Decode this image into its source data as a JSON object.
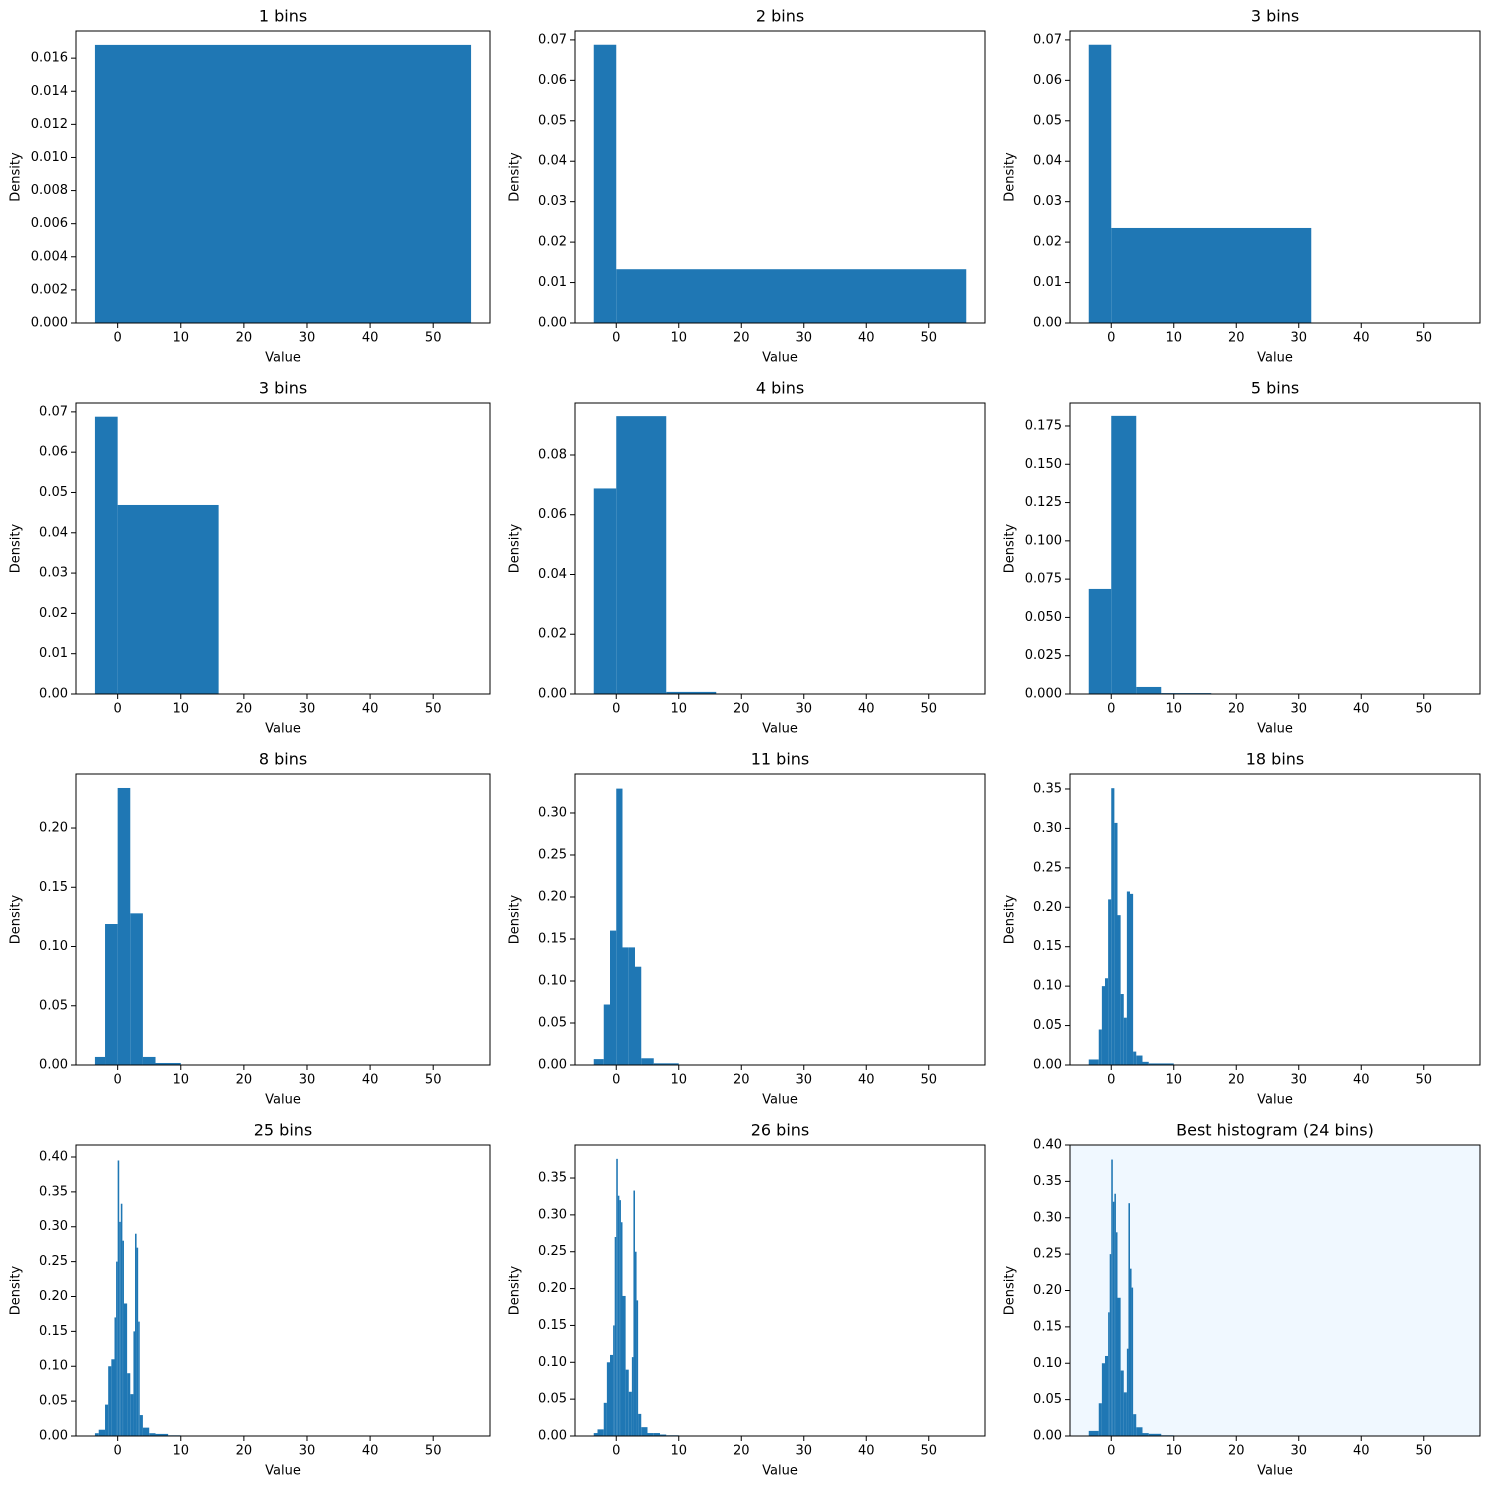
{
  "chart_data": [
    {
      "type": "histogram",
      "title": "1 bins",
      "x_label": "Value",
      "y_label": "Density",
      "color": "#1f77b4",
      "bins": [
        -3.6,
        56
      ],
      "values": [
        0.0168
      ],
      "xlim": [
        -6.6,
        59
      ],
      "xticks": [
        0,
        10,
        20,
        30,
        40,
        50
      ],
      "ylim": [
        0,
        0.01764
      ],
      "yticks": [
        {
          "value": 0,
          "label": "0.000"
        },
        0.002,
        0.004,
        0.006,
        0.008,
        {
          "value": 0.01,
          "label": "0.010"
        },
        0.012,
        0.014,
        0.016
      ]
    },
    {
      "type": "histogram",
      "title": "2 bins",
      "x_label": "Value",
      "y_label": "Density",
      "color": "#1f77b4",
      "bins": [
        -3.6,
        0,
        56
      ],
      "values": [
        0.0688,
        0.0133
      ],
      "xlim": [
        -6.6,
        59
      ],
      "xticks": [
        0,
        10,
        20,
        30,
        40,
        50
      ],
      "ylim": [
        0,
        0.0722
      ],
      "yticks": [
        {
          "value": 0,
          "label": "0.00"
        },
        0.01,
        0.02,
        0.03,
        0.04,
        0.05,
        0.06,
        0.07
      ]
    },
    {
      "type": "histogram",
      "title": "3 bins",
      "x_label": "Value",
      "y_label": "Density",
      "color": "#1f77b4",
      "bins": [
        -3.6,
        0,
        32,
        56
      ],
      "values": [
        0.0688,
        0.0235,
        2e-05
      ],
      "xlim": [
        -6.6,
        59
      ],
      "xticks": [
        0,
        10,
        20,
        30,
        40,
        50
      ],
      "ylim": [
        0,
        0.0722
      ],
      "yticks": [
        {
          "value": 0,
          "label": "0.00"
        },
        0.01,
        0.02,
        0.03,
        0.04,
        0.05,
        0.06,
        0.07
      ]
    },
    {
      "type": "histogram",
      "title": "3 bins",
      "x_label": "Value",
      "y_label": "Density",
      "color": "#1f77b4",
      "bins": [
        -3.6,
        0,
        16,
        56
      ],
      "values": [
        0.0688,
        0.0469,
        5e-05
      ],
      "xlim": [
        -6.6,
        59
      ],
      "xticks": [
        0,
        10,
        20,
        30,
        40,
        50
      ],
      "ylim": [
        0,
        0.0722
      ],
      "yticks": [
        {
          "value": 0,
          "label": "0.00"
        },
        0.01,
        0.02,
        0.03,
        0.04,
        0.05,
        0.06,
        0.07
      ]
    },
    {
      "type": "histogram",
      "title": "4 bins",
      "x_label": "Value",
      "y_label": "Density",
      "color": "#1f77b4",
      "bins": [
        -3.6,
        0,
        8,
        16,
        56
      ],
      "values": [
        0.0688,
        0.093,
        0.0007,
        2e-05
      ],
      "xlim": [
        -6.6,
        59
      ],
      "xticks": [
        0,
        10,
        20,
        30,
        40,
        50
      ],
      "ylim": [
        0,
        0.0974
      ],
      "yticks": [
        {
          "value": 0,
          "label": "0.00"
        },
        0.02,
        0.04,
        0.06,
        0.08
      ]
    },
    {
      "type": "histogram",
      "title": "5 bins",
      "x_label": "Value",
      "y_label": "Density",
      "color": "#1f77b4",
      "bins": [
        -3.6,
        0,
        4,
        8,
        16,
        56
      ],
      "values": [
        0.0686,
        0.1816,
        0.0046,
        0.0006,
        2e-05
      ],
      "xlim": [
        -6.6,
        59
      ],
      "xticks": [
        0,
        10,
        20,
        30,
        40,
        50
      ],
      "ylim": [
        0,
        0.19
      ],
      "yticks": [
        {
          "value": 0,
          "label": "0.000"
        },
        0.025,
        {
          "value": 0.05,
          "label": "0.050"
        },
        0.075,
        {
          "value": 0.1,
          "label": "0.100"
        },
        0.125,
        {
          "value": 0.15,
          "label": "0.150"
        },
        0.175
      ]
    },
    {
      "type": "histogram",
      "title": "8 bins",
      "x_label": "Value",
      "y_label": "Density",
      "color": "#1f77b4",
      "bins": [
        -3.6,
        -2,
        0,
        2,
        4,
        6,
        10,
        16,
        56
      ],
      "values": [
        0.0068,
        0.119,
        0.2338,
        0.128,
        0.0068,
        0.0017,
        0.0003,
        1e-05
      ],
      "xlim": [
        -6.6,
        59
      ],
      "xticks": [
        0,
        10,
        20,
        30,
        40,
        50
      ],
      "ylim": [
        0,
        0.2456
      ],
      "yticks": [
        {
          "value": 0,
          "label": "0.00"
        },
        0.05,
        {
          "value": 0.1,
          "label": "0.10"
        },
        0.15,
        {
          "value": 0.2,
          "label": "0.20"
        }
      ]
    },
    {
      "type": "histogram",
      "title": "11 bins",
      "x_label": "Value",
      "y_label": "Density",
      "color": "#1f77b4",
      "bins": [
        -3.6,
        -2,
        -1,
        0,
        1,
        2,
        3,
        4,
        6,
        10,
        16,
        56
      ],
      "values": [
        0.007,
        0.072,
        0.16,
        0.329,
        0.14,
        0.14,
        0.117,
        0.008,
        0.002,
        0.0003,
        1e-05
      ],
      "xlim": [
        -6.6,
        59
      ],
      "xticks": [
        0,
        10,
        20,
        30,
        40,
        50
      ],
      "ylim": [
        0,
        0.3464
      ],
      "yticks": [
        {
          "value": 0,
          "label": "0.00"
        },
        0.05,
        {
          "value": 0.1,
          "label": "0.10"
        },
        0.15,
        {
          "value": 0.2,
          "label": "0.20"
        },
        0.25,
        {
          "value": 0.3,
          "label": "0.30"
        }
      ]
    },
    {
      "type": "histogram",
      "title": "18 bins",
      "x_label": "Value",
      "y_label": "Density",
      "color": "#1f77b4",
      "bins": [
        -3.6,
        -2,
        -1.5,
        -1,
        -0.5,
        0,
        0.5,
        1,
        1.5,
        2,
        2.5,
        3,
        3.5,
        4,
        5,
        6,
        10,
        16,
        56
      ],
      "values": [
        0.007,
        0.045,
        0.1,
        0.11,
        0.21,
        0.351,
        0.307,
        0.19,
        0.09,
        0.06,
        0.22,
        0.217,
        0.017,
        0.012,
        0.004,
        0.002,
        0.0003,
        1e-05
      ],
      "xlim": [
        -6.6,
        59
      ],
      "xticks": [
        0,
        10,
        20,
        30,
        40,
        50
      ],
      "ylim": [
        0,
        0.369
      ],
      "yticks": [
        {
          "value": 0,
          "label": "0.00"
        },
        0.05,
        {
          "value": 0.1,
          "label": "0.10"
        },
        0.15,
        {
          "value": 0.2,
          "label": "0.20"
        },
        0.25,
        {
          "value": 0.3,
          "label": "0.30"
        },
        0.35
      ]
    },
    {
      "type": "histogram",
      "title": "25 bins",
      "x_label": "Value",
      "y_label": "Density",
      "color": "#1f77b4",
      "bins": [
        -3.6,
        -3,
        -2,
        -1.5,
        -1,
        -0.5,
        -0.25,
        0,
        0.25,
        0.5,
        0.75,
        1,
        1.5,
        2,
        2.5,
        2.75,
        3,
        3.25,
        3.5,
        4,
        5,
        6,
        8,
        10,
        16,
        56
      ],
      "values": [
        0.004,
        0.009,
        0.045,
        0.1,
        0.11,
        0.17,
        0.25,
        0.395,
        0.307,
        0.333,
        0.28,
        0.19,
        0.09,
        0.06,
        0.15,
        0.29,
        0.27,
        0.164,
        0.03,
        0.012,
        0.004,
        0.003,
        0.001,
        0.0003,
        1e-05
      ],
      "xlim": [
        -6.6,
        59
      ],
      "xticks": [
        0,
        10,
        20,
        30,
        40,
        50
      ],
      "ylim": [
        0,
        0.4172
      ],
      "yticks": [
        {
          "value": 0,
          "label": "0.00"
        },
        0.05,
        {
          "value": 0.1,
          "label": "0.10"
        },
        0.15,
        {
          "value": 0.2,
          "label": "0.20"
        },
        0.25,
        {
          "value": 0.3,
          "label": "0.30"
        },
        0.35,
        {
          "value": 0.4,
          "label": "0.40"
        }
      ]
    },
    {
      "type": "histogram",
      "title": "26 bins",
      "x_label": "Value",
      "y_label": "Density",
      "color": "#1f77b4",
      "bins": [
        -3.6,
        -3,
        -2,
        -1.5,
        -1,
        -0.5,
        -0.25,
        0,
        0.25,
        0.5,
        0.75,
        1,
        1.5,
        2,
        2.5,
        2.75,
        3,
        3.25,
        3.5,
        4,
        5,
        6,
        7,
        8,
        10,
        16,
        56
      ],
      "values": [
        0.004,
        0.009,
        0.045,
        0.1,
        0.11,
        0.15,
        0.27,
        0.376,
        0.326,
        0.32,
        0.29,
        0.19,
        0.09,
        0.06,
        0.107,
        0.333,
        0.25,
        0.184,
        0.03,
        0.012,
        0.004,
        0.004,
        0.002,
        0.001,
        0.0003,
        1e-05
      ],
      "xlim": [
        -6.6,
        59
      ],
      "xticks": [
        0,
        10,
        20,
        30,
        40,
        50
      ],
      "ylim": [
        0,
        0.3948
      ],
      "yticks": [
        {
          "value": 0,
          "label": "0.00"
        },
        0.05,
        {
          "value": 0.1,
          "label": "0.10"
        },
        0.15,
        {
          "value": 0.2,
          "label": "0.20"
        },
        0.25,
        {
          "value": 0.3,
          "label": "0.30"
        },
        0.35
      ]
    },
    {
      "type": "histogram",
      "title": "Best histogram (24 bins)",
      "x_label": "Value",
      "y_label": "Density",
      "color": "#1f77b4",
      "facecolor": "#f0f8ff",
      "bins": [
        -3.6,
        -2,
        -1.5,
        -1,
        -0.5,
        -0.25,
        0,
        0.25,
        0.5,
        0.75,
        1,
        1.5,
        2,
        2.5,
        2.75,
        3,
        3.25,
        3.5,
        4,
        5,
        6,
        8,
        10,
        16,
        56
      ],
      "values": [
        0.007,
        0.045,
        0.1,
        0.11,
        0.17,
        0.25,
        0.38,
        0.322,
        0.333,
        0.28,
        0.19,
        0.09,
        0.06,
        0.12,
        0.32,
        0.23,
        0.204,
        0.03,
        0.012,
        0.004,
        0.003,
        0.001,
        0.0003,
        1e-05
      ],
      "xlim": [
        -6.6,
        59
      ],
      "xticks": [
        0,
        10,
        20,
        30,
        40,
        50
      ],
      "ylim": [
        0,
        0.4
      ],
      "yticks": [
        {
          "value": 0,
          "label": "0.00"
        },
        0.05,
        {
          "value": 0.1,
          "label": "0.10"
        },
        0.15,
        {
          "value": 0.2,
          "label": "0.20"
        },
        0.25,
        {
          "value": 0.3,
          "label": "0.30"
        },
        0.35,
        {
          "value": 0.4,
          "label": "0.40"
        }
      ]
    }
  ]
}
